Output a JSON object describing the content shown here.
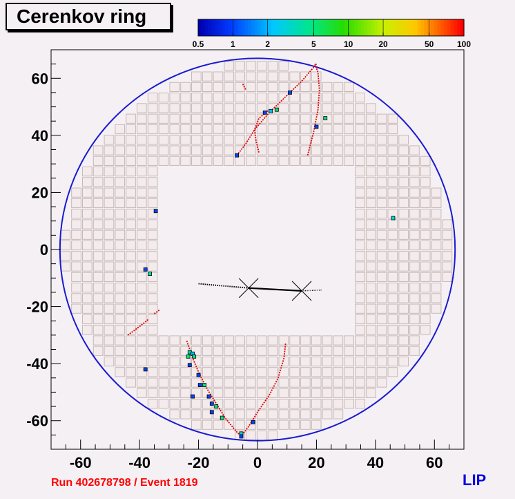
{
  "title": "Cerenkov ring",
  "footer": {
    "run_label": "Run 402678798 / Event 1819",
    "logo": "LIP"
  },
  "colors": {
    "background": "#f4f0f4",
    "ring": "#1a1ad0",
    "pmt_fill": "#f4ecec",
    "pmt_stroke": "#c8b8b8",
    "track": "#000000",
    "hough": "#dd0000",
    "run_label": "#ff0000",
    "logo": "#0000e0"
  },
  "colorbar": {
    "scale": "log",
    "range": [
      0.5,
      100
    ],
    "tick_labels": [
      "0.5",
      "1",
      "2",
      "5",
      "10",
      "20",
      "50",
      "100"
    ],
    "tick_values": [
      0.5,
      1,
      2,
      5,
      10,
      20,
      50,
      100
    ]
  },
  "chart_data": {
    "type": "scatter",
    "title": "Cerenkov ring",
    "xlim": [
      -70,
      70
    ],
    "ylim": [
      -70,
      70
    ],
    "x_ticks": [
      -60,
      -40,
      -20,
      0,
      20,
      40,
      60
    ],
    "y_ticks": [
      -60,
      -40,
      -20,
      0,
      20,
      40,
      60
    ],
    "x_tick_labels": [
      "-60",
      "-40",
      "-20",
      "0",
      "20",
      "40",
      "60"
    ],
    "y_tick_labels": [
      "-60",
      "-40",
      "-20",
      "0",
      "20",
      "40",
      "60"
    ],
    "grid": false,
    "outer_ring": {
      "center": [
        0,
        0
      ],
      "radius": 67
    },
    "pmt_grid": {
      "pitch": 3.7,
      "hole_half_width": 33,
      "hole_half_height": 31,
      "left_right_band": [
        -67,
        -33,
        33,
        67
      ],
      "top_bottom_band": [
        -67,
        -31,
        31,
        67
      ]
    },
    "hits": [
      {
        "x": -7,
        "y": 33,
        "value": 1
      },
      {
        "x": 2.5,
        "y": 48,
        "value": 1
      },
      {
        "x": 4.5,
        "y": 48.5,
        "value": 2
      },
      {
        "x": 6.5,
        "y": 49,
        "value": 5
      },
      {
        "x": 11,
        "y": 55,
        "value": 1
      },
      {
        "x": 20,
        "y": 43,
        "value": 1
      },
      {
        "x": 23,
        "y": 46,
        "value": 5
      },
      {
        "x": -34.5,
        "y": 13.5,
        "value": 1
      },
      {
        "x": 46,
        "y": 11,
        "value": 3
      },
      {
        "x": -38,
        "y": -7,
        "value": 1
      },
      {
        "x": -36.5,
        "y": -8.5,
        "value": 4
      },
      {
        "x": -38,
        "y": -42,
        "value": 1
      },
      {
        "x": -23.5,
        "y": -37.5,
        "value": 5
      },
      {
        "x": -23,
        "y": -36,
        "value": 4
      },
      {
        "x": -22,
        "y": -36.5,
        "value": 2
      },
      {
        "x": -21.5,
        "y": -37.5,
        "value": 5
      },
      {
        "x": -23,
        "y": -40.5,
        "value": 1
      },
      {
        "x": -20,
        "y": -44,
        "value": 1
      },
      {
        "x": -19.5,
        "y": -47.5,
        "value": 1
      },
      {
        "x": -18,
        "y": -47.5,
        "value": 5
      },
      {
        "x": -22,
        "y": -51.5,
        "value": 1
      },
      {
        "x": -16.5,
        "y": -51.5,
        "value": 1
      },
      {
        "x": -15.5,
        "y": -54,
        "value": 1
      },
      {
        "x": -14,
        "y": -55,
        "value": 5
      },
      {
        "x": -15.5,
        "y": -57,
        "value": 1
      },
      {
        "x": -12,
        "y": -59,
        "value": 5
      },
      {
        "x": -5.5,
        "y": -64.5,
        "value": 3
      },
      {
        "x": -5.5,
        "y": -65.5,
        "value": 1
      },
      {
        "x": -1.5,
        "y": -60.5,
        "value": 1
      }
    ],
    "hough_curves": [
      [
        [
          -7,
          33
        ],
        [
          -4,
          37
        ],
        [
          -1,
          42
        ],
        [
          4,
          48
        ],
        [
          10,
          54
        ],
        [
          15,
          59
        ],
        [
          20,
          65
        ]
      ],
      [
        [
          -5,
          58
        ],
        [
          -4,
          56
        ]
      ],
      [
        [
          0.5,
          34
        ],
        [
          -0.5,
          38
        ],
        [
          -1,
          42
        ],
        [
          0.5,
          46
        ],
        [
          4,
          49
        ]
      ],
      [
        [
          17,
          33
        ],
        [
          19,
          41
        ],
        [
          20.5,
          49
        ],
        [
          21,
          56
        ],
        [
          20.5,
          62
        ],
        [
          19.5,
          65
        ]
      ],
      [
        [
          -44,
          -30
        ],
        [
          -40,
          -27
        ],
        [
          -37,
          -24.5
        ]
      ],
      [
        [
          -35,
          -22.5
        ],
        [
          -33,
          -21
        ]
      ],
      [
        [
          -24,
          -32
        ],
        [
          -22,
          -38
        ],
        [
          -20,
          -43
        ],
        [
          -17,
          -49
        ],
        [
          -14,
          -54
        ],
        [
          -11,
          -59
        ],
        [
          -7,
          -64
        ],
        [
          -5,
          -66
        ]
      ],
      [
        [
          9.5,
          -33
        ],
        [
          9,
          -38
        ],
        [
          7,
          -45
        ],
        [
          4,
          -51
        ],
        [
          0,
          -57
        ],
        [
          -3,
          -62
        ],
        [
          -6,
          -66
        ]
      ]
    ],
    "track": {
      "crosses": [
        [
          -3,
          -13.5
        ],
        [
          15,
          -14.5
        ]
      ],
      "dotted_left": [
        [
          -20,
          -12
        ],
        [
          -3,
          -13.5
        ]
      ],
      "solid": [
        [
          -3,
          -13.5
        ],
        [
          15,
          -14.5
        ]
      ],
      "dotted_right": [
        [
          15,
          -14.5
        ],
        [
          22,
          -14.2
        ]
      ]
    }
  }
}
